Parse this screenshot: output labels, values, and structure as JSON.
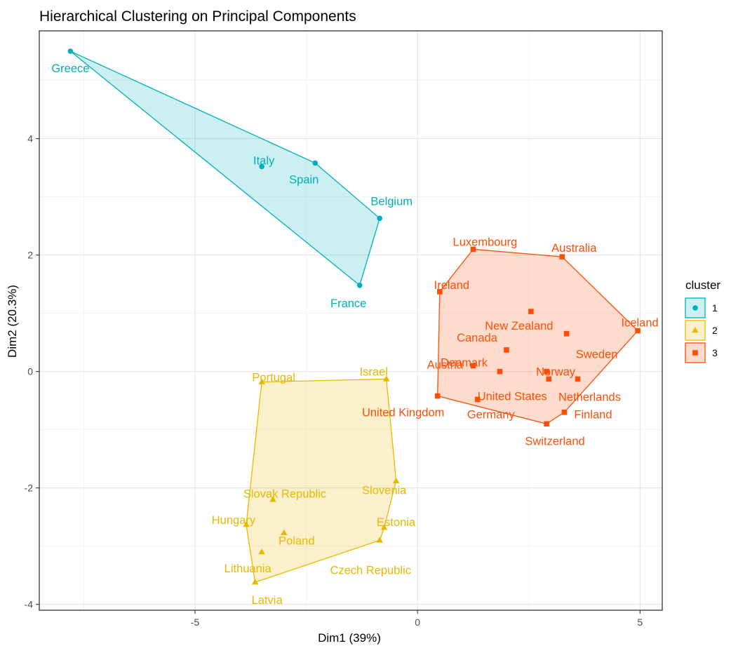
{
  "chart_data": {
    "type": "scatter",
    "title": "Hierarchical Clustering on Principal Components",
    "xlabel": "Dim1 (39%)",
    "ylabel": "Dim2 (20.3%)",
    "xlim": [
      -8.5,
      5.5
    ],
    "ylim": [
      -4.1,
      5.85
    ],
    "x_ticks": [
      -5,
      0,
      5
    ],
    "y_ticks": [
      -4,
      -2,
      0,
      2,
      4
    ],
    "x_tick_labels": [
      "-5",
      "0",
      "5"
    ],
    "y_tick_labels": [
      "-4",
      "-2",
      "0",
      "2",
      "4"
    ],
    "grid": true,
    "legend": {
      "title": "cluster",
      "position": "right"
    },
    "series": [
      {
        "name": "1",
        "color": "#00AFBB",
        "shape": "circle",
        "hull": [
          "Greece",
          "Spain",
          "Belgium",
          "France"
        ],
        "points": [
          {
            "label": "Greece",
            "x": -7.8,
            "y": 5.5
          },
          {
            "label": "Italy",
            "x": -3.5,
            "y": 3.52
          },
          {
            "label": "Spain",
            "x": -2.3,
            "y": 3.58
          },
          {
            "label": "Belgium",
            "x": -0.85,
            "y": 2.63
          },
          {
            "label": "France",
            "x": -1.3,
            "y": 1.48
          }
        ]
      },
      {
        "name": "2",
        "color": "#E7B800",
        "shape": "triangle",
        "hull": [
          "Portugal",
          "Israel",
          "Slovenia",
          "Estonia",
          "Czech Republic",
          "Latvia",
          "Hungary"
        ],
        "points": [
          {
            "label": "Portugal",
            "x": -3.5,
            "y": -0.18
          },
          {
            "label": "Israel",
            "x": -0.7,
            "y": -0.13
          },
          {
            "label": "Slovak Republic",
            "x": -3.25,
            "y": -2.2
          },
          {
            "label": "Slovenia",
            "x": -0.48,
            "y": -1.88
          },
          {
            "label": "Hungary",
            "x": -3.85,
            "y": -2.63
          },
          {
            "label": "Estonia",
            "x": -0.75,
            "y": -2.68
          },
          {
            "label": "Poland",
            "x": -3.0,
            "y": -2.77
          },
          {
            "label": "Lithuania",
            "x": -3.5,
            "y": -3.1
          },
          {
            "label": "Czech Republic",
            "x": -0.85,
            "y": -2.9
          },
          {
            "label": "Latvia",
            "x": -3.65,
            "y": -3.62
          }
        ]
      },
      {
        "name": "3",
        "color": "#FC4E07",
        "shape": "square",
        "hull": [
          "Luxembourg",
          "Australia",
          "Iceland",
          "Finland",
          "Switzerland",
          "United Kingdom",
          "Ireland"
        ],
        "points": [
          {
            "label": "Luxembourg",
            "x": 1.25,
            "y": 2.1
          },
          {
            "label": "Australia",
            "x": 3.25,
            "y": 1.97
          },
          {
            "label": "Ireland",
            "x": 0.5,
            "y": 1.37
          },
          {
            "label": "Iceland",
            "x": 4.95,
            "y": 0.7
          },
          {
            "label": "New Zealand",
            "x": 2.55,
            "y": 1.03
          },
          {
            "label": "Sweden",
            "x": 3.35,
            "y": 0.65
          },
          {
            "label": "Canada",
            "x": 2.0,
            "y": 0.37
          },
          {
            "label": "Austria",
            "x": 1.25,
            "y": 0.1
          },
          {
            "label": "Denmark",
            "x": 1.85,
            "y": 0.0
          },
          {
            "label": "Norway",
            "x": 2.9,
            "y": 0.0
          },
          {
            "label": "Netherlands",
            "x": 3.6,
            "y": -0.13
          },
          {
            "label": "United States",
            "x": 2.95,
            "y": -0.13
          },
          {
            "label": "United Kingdom",
            "x": 0.45,
            "y": -0.42
          },
          {
            "label": "Germany",
            "x": 1.35,
            "y": -0.48
          },
          {
            "label": "Finland",
            "x": 3.3,
            "y": -0.7
          },
          {
            "label": "Switzerland",
            "x": 2.9,
            "y": -0.9
          }
        ]
      }
    ]
  }
}
